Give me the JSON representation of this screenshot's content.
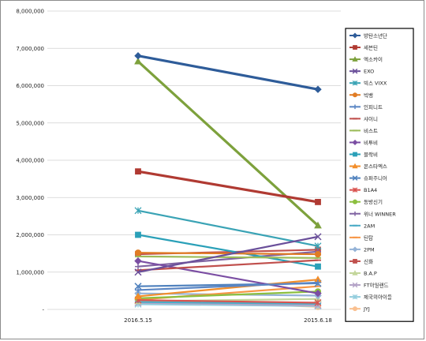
{
  "chart_data": {
    "type": "line",
    "categories": [
      "2016.5.15",
      "2015.6.18"
    ],
    "ylim": [
      0,
      8000000
    ],
    "y_ticks": [
      "-",
      "1,000,000",
      "2,000,000",
      "3,000,000",
      "4,000,000",
      "5,000,000",
      "6,000,000",
      "7,000,000",
      "8,000,000"
    ],
    "grid": true,
    "legend_position": "right",
    "series": [
      {
        "name": "방탄소년단",
        "color": "#2e5c99",
        "marker": "diamond",
        "values": [
          6800000,
          5900000
        ]
      },
      {
        "name": "세븐틴",
        "color": "#b03a32",
        "marker": "square",
        "values": [
          3700000,
          2880000
        ]
      },
      {
        "name": "엑소카이",
        "color": "#7da13c",
        "marker": "triangle",
        "values": [
          6650000,
          2250000
        ]
      },
      {
        "name": "EXO",
        "color": "#6a4f9a",
        "marker": "x",
        "values": [
          1000000,
          1950000
        ]
      },
      {
        "name": "빅스 VIXX",
        "color": "#3aa3b5",
        "marker": "star",
        "values": [
          2650000,
          1700000
        ]
      },
      {
        "name": "빅뱅",
        "color": "#e07c24",
        "marker": "circle",
        "values": [
          1520000,
          1480000
        ]
      },
      {
        "name": "인피니트",
        "color": "#5b86c4",
        "marker": "plus",
        "values": [
          520000,
          720000
        ]
      },
      {
        "name": "샤이니",
        "color": "#c0504d",
        "marker": "dash",
        "values": [
          1050000,
          1320000
        ]
      },
      {
        "name": "비스트",
        "color": "#9bbb59",
        "marker": "dash",
        "values": [
          1420000,
          1380000
        ]
      },
      {
        "name": "비투비",
        "color": "#7b4ea3",
        "marker": "diamond",
        "values": [
          1300000,
          430000
        ]
      },
      {
        "name": "블락비",
        "color": "#2aa0b8",
        "marker": "square",
        "values": [
          2000000,
          1150000
        ]
      },
      {
        "name": "몬스타엑스",
        "color": "#f28e2b",
        "marker": "triangle",
        "values": [
          350000,
          800000
        ]
      },
      {
        "name": "슈퍼주니어",
        "color": "#4f81bd",
        "marker": "x",
        "values": [
          620000,
          700000
        ]
      },
      {
        "name": "B1A4",
        "color": "#d9534f",
        "marker": "star",
        "values": [
          250000,
          180000
        ]
      },
      {
        "name": "동방신기",
        "color": "#8cbf3f",
        "marker": "circle",
        "values": [
          300000,
          480000
        ]
      },
      {
        "name": "위너 WINNER",
        "color": "#8064a2",
        "marker": "plus",
        "values": [
          1150000,
          1550000
        ]
      },
      {
        "name": "2AM",
        "color": "#4bacc6",
        "marker": "dash",
        "values": [
          200000,
          150000
        ]
      },
      {
        "name": "틴탑",
        "color": "#f79646",
        "marker": "dash",
        "values": [
          260000,
          620000
        ]
      },
      {
        "name": "2PM",
        "color": "#95b3d7",
        "marker": "diamond",
        "values": [
          430000,
          370000
        ]
      },
      {
        "name": "신화",
        "color": "#c0504d",
        "marker": "square",
        "values": [
          1480000,
          1600000
        ]
      },
      {
        "name": "B.A.P",
        "color": "#c3d69b",
        "marker": "triangle",
        "values": [
          220000,
          280000
        ]
      },
      {
        "name": "FT아일랜드",
        "color": "#b3a2c7",
        "marker": "x",
        "values": [
          180000,
          110000
        ]
      },
      {
        "name": "제국의아이들",
        "color": "#93cddd",
        "marker": "star",
        "values": [
          140000,
          90000
        ]
      },
      {
        "name": "JYJ",
        "color": "#fac090",
        "marker": "circle",
        "values": [
          240000,
          70000
        ]
      }
    ]
  }
}
